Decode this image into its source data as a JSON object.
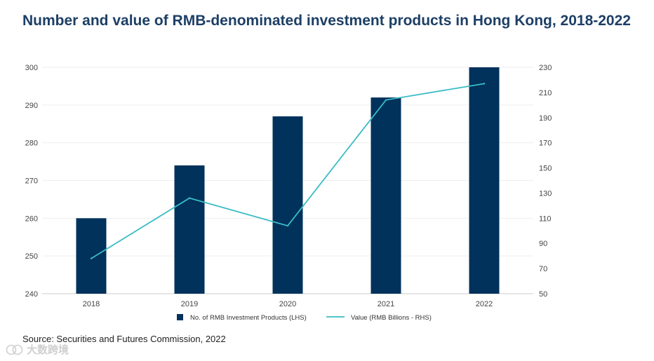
{
  "title": "Number and value of RMB-denominated investment products in Hong Kong, 2018-2022",
  "source": "Source: Securities and Futures Commission, 2022",
  "watermark": "大数跨境",
  "colors": {
    "bar": "#00325b",
    "line": "#3bbcc4",
    "grid": "#eeeeee",
    "title": "#1d3f66"
  },
  "chart_data": {
    "type": "bar",
    "title": "Number and value of RMB-denominated investment products in Hong Kong, 2018-2022",
    "categories": [
      "2018",
      "2019",
      "2020",
      "2021",
      "2022"
    ],
    "series": [
      {
        "name": "No. of RMB Investment Products (LHS)",
        "type": "bar",
        "axis": "left",
        "values": [
          260,
          274,
          287,
          292,
          300
        ]
      },
      {
        "name": "Value (RMB Billions - RHS)",
        "type": "line",
        "axis": "right",
        "values": [
          78,
          126,
          104,
          204,
          217
        ]
      }
    ],
    "y_left": {
      "min": 240,
      "max": 300,
      "ticks": [
        "300",
        "290",
        "280",
        "270",
        "260",
        "250",
        "240"
      ]
    },
    "y_right": {
      "min": 50,
      "max": 230,
      "ticks": [
        "230",
        "210",
        "190",
        "170",
        "150",
        "130",
        "110",
        "90",
        "70",
        "50"
      ]
    },
    "grid": true,
    "legend_position": "bottom"
  }
}
